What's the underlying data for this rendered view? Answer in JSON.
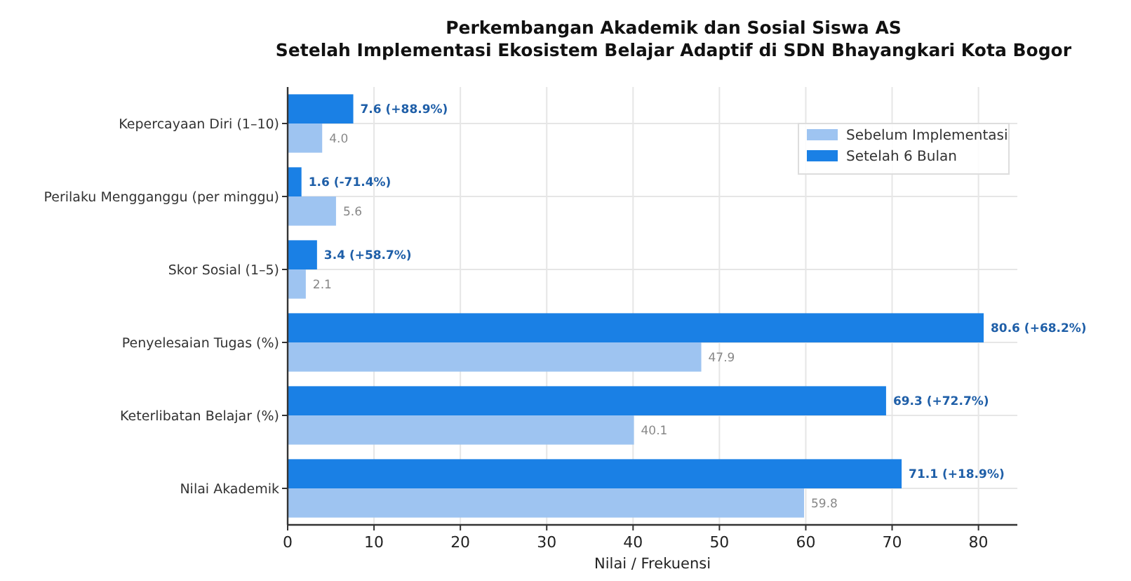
{
  "chart_data": {
    "type": "bar",
    "orientation": "horizontal",
    "title": "Perkembangan Akademik dan Sosial Siswa AS",
    "subtitle": "Setelah Implementasi Ekosistem Belajar Adaptif di SDN Bhayangkari Kota Bogor",
    "xlabel": "Nilai / Frekuensi",
    "categories": [
      "Kepercayaan Diri (1–10)",
      "Perilaku Mengganggu (per minggu)",
      "Skor Sosial (1–5)",
      "Penyelesaian Tugas (%)",
      "Keterlibatan Belajar (%)",
      "Nilai Akademik"
    ],
    "series": [
      {
        "name": "Setelah 6 Bulan",
        "color": "#1a80e5",
        "values": [
          7.6,
          1.6,
          3.4,
          80.6,
          69.3,
          71.1
        ],
        "value_labels": [
          "7.6  (+88.9%)",
          "1.6  (-71.4%)",
          "3.4  (+58.7%)",
          "80.6  (+68.2%)",
          "69.3  (+72.7%)",
          "71.1  (+18.9%)"
        ]
      },
      {
        "name": "Sebelum Implementasi",
        "color": "#9ec4f1",
        "values": [
          4.0,
          5.6,
          2.1,
          47.9,
          40.1,
          59.8
        ],
        "value_labels": [
          "4.0",
          "5.6",
          "2.1",
          "47.9",
          "40.1",
          "59.8"
        ]
      }
    ],
    "xlim": [
      0,
      84.5
    ],
    "xticks": [
      0,
      10,
      20,
      30,
      40,
      50,
      60,
      70,
      80
    ],
    "grid": true,
    "legend": "top right"
  }
}
